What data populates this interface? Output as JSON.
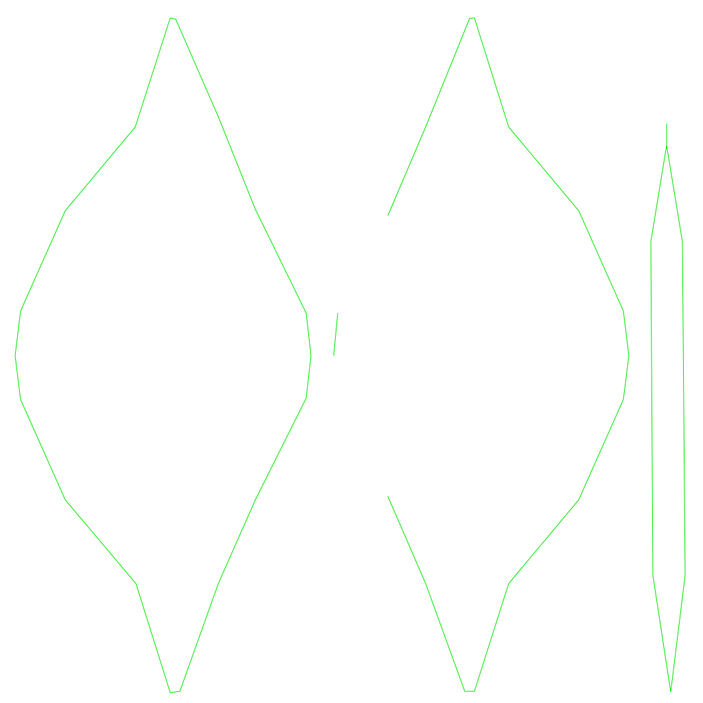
{
  "colors": {
    "background": "#ffffff",
    "stroke": "#00e600"
  },
  "shapes": [
    {
      "name": "left-lens-outline",
      "kind": "closed"
    },
    {
      "name": "small-slash-stroke",
      "kind": "open"
    },
    {
      "name": "right-lens-outline",
      "kind": "closed-with-gap"
    },
    {
      "name": "narrow-spindle-outline",
      "kind": "closed"
    }
  ]
}
